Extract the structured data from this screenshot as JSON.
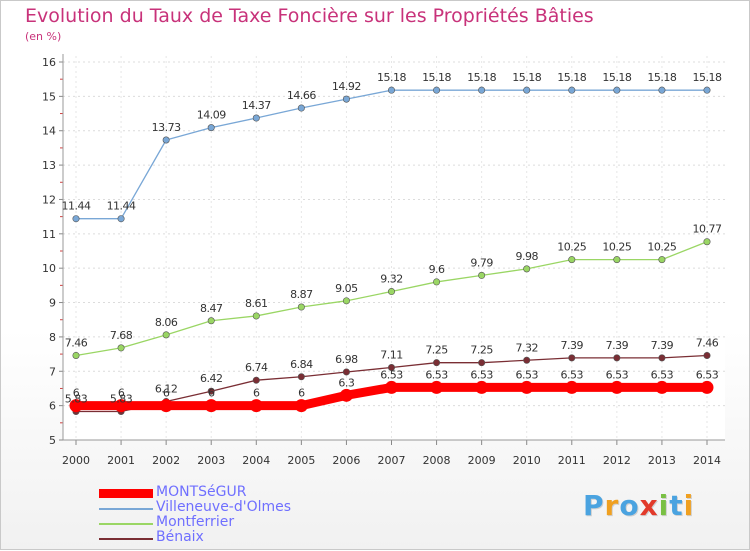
{
  "chart_data": {
    "type": "line",
    "title": "Evolution du Taux de Taxe Foncière sur les Propriétés Bâties",
    "ylabel": "(en %)",
    "x": [
      "2000",
      "2001",
      "2002",
      "2003",
      "2004",
      "2005",
      "2006",
      "2007",
      "2008",
      "2009",
      "2010",
      "2011",
      "2012",
      "2013",
      "2014"
    ],
    "ylim": [
      5,
      16
    ],
    "yticks": [
      5,
      6,
      7,
      8,
      9,
      10,
      11,
      12,
      13,
      14,
      15,
      16
    ],
    "legend_position": "bottom-left",
    "series": [
      {
        "name": "Villeneuve-d'Olmes",
        "color": "#79a7d6",
        "values": [
          11.44,
          11.44,
          13.73,
          14.09,
          14.37,
          14.66,
          14.92,
          15.18,
          15.18,
          15.18,
          15.18,
          15.18,
          15.18,
          15.18,
          15.18
        ],
        "labels": [
          "11.44",
          "11.44",
          "13.73",
          "14.09",
          "14.37",
          "14.66",
          "14.92",
          "15.18",
          "15.18",
          "15.18",
          "15.18",
          "15.18",
          "15.18",
          "15.18",
          "15.18"
        ]
      },
      {
        "name": "Montferrier",
        "color": "#9ad664",
        "values": [
          7.46,
          7.68,
          8.06,
          8.47,
          8.61,
          8.87,
          9.05,
          9.32,
          9.6,
          9.79,
          9.98,
          10.25,
          10.25,
          10.25,
          10.77
        ],
        "labels": [
          "7.46",
          "7.68",
          "8.06",
          "8.47",
          "8.61",
          "8.87",
          "9.05",
          "9.32",
          "9.6",
          "9.79",
          "9.98",
          "10.25",
          "10.25",
          "10.25",
          "10.77"
        ]
      },
      {
        "name": "Bénaix",
        "color": "#7a2e34",
        "values": [
          5.83,
          5.83,
          6.12,
          6.42,
          6.74,
          6.84,
          6.98,
          7.11,
          7.25,
          7.25,
          7.32,
          7.39,
          7.39,
          7.39,
          7.46
        ],
        "labels": [
          "5.83",
          "5.83",
          "6.12",
          "6.42",
          "6.74",
          "6.84",
          "6.98",
          "7.11",
          "7.25",
          "7.25",
          "7.32",
          "7.39",
          "7.39",
          "7.39",
          "7.46"
        ]
      },
      {
        "name": "MONTSéGUR",
        "color": "#ff0000",
        "values": [
          6,
          6,
          6,
          6,
          6,
          6,
          6.3,
          6.53,
          6.53,
          6.53,
          6.53,
          6.53,
          6.53,
          6.53,
          6.53
        ],
        "labels": [
          "6",
          "6",
          "6",
          "6",
          "6",
          "6",
          "6.3",
          "6.53",
          "6.53",
          "6.53",
          "6.53",
          "6.53",
          "6.53",
          "6.53",
          "6.53"
        ]
      }
    ],
    "legend_order": [
      "MONTSéGUR",
      "Villeneuve-d'Olmes",
      "Montferrier",
      "Bénaix"
    ]
  },
  "logo": {
    "letters": [
      "P",
      "r",
      "o",
      "x",
      "i",
      "t",
      "i"
    ],
    "colors": [
      "#4aa3e0",
      "#f0a020",
      "#4aa3e0",
      "#e23a2a",
      "#79c043",
      "#4aa3e0",
      "#f0a020"
    ]
  }
}
